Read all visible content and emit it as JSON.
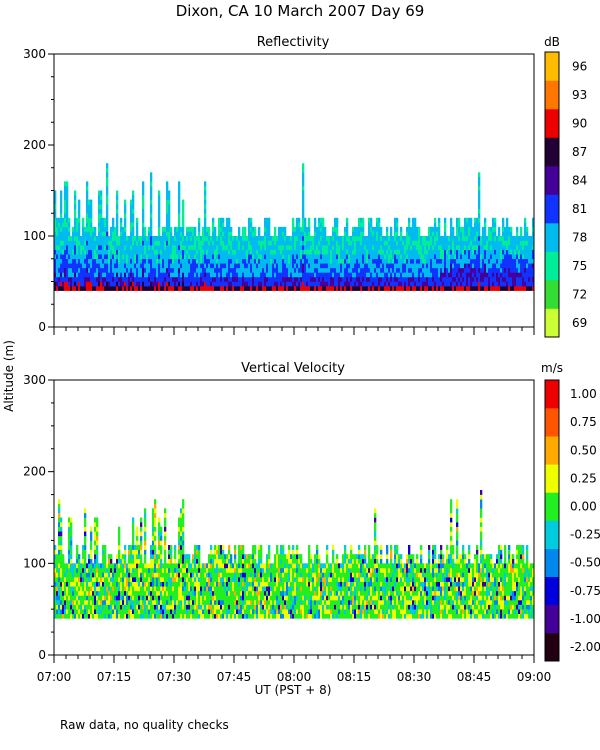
{
  "figure": {
    "title": "Dixon, CA 10 March 2007  Day  69",
    "ylabel": "Altitude (m)",
    "xlabel": "UT  (PST + 8)",
    "footnote": "Raw data, no quality checks"
  },
  "chart_data": [
    {
      "type": "heatmap",
      "title": "Reflectivity",
      "ylabel": "Altitude (m)",
      "ylim": [
        0,
        300
      ],
      "yticks": [
        0,
        100,
        200,
        300
      ],
      "xlim": [
        "07:00",
        "09:00"
      ],
      "xticks": [
        "07:00",
        "07:15",
        "07:30",
        "07:45",
        "08:00",
        "08:15",
        "08:30",
        "08:45",
        "09:00"
      ],
      "colorbar": {
        "unit": "dB",
        "levels": [
          69,
          72,
          75,
          78,
          81,
          84,
          87,
          90,
          93,
          96
        ],
        "colors": [
          "#ccff33",
          "#33dd33",
          "#00ee99",
          "#00bbee",
          "#1133ff",
          "#440099",
          "#220033",
          "#ee0000",
          "#ff7700",
          "#ffbb00"
        ]
      },
      "data_summary": {
        "bottom_altitude_m": 40,
        "typical_top_altitude_m": 120,
        "max_top_altitude_m": 180,
        "near_surface_band_dB": [
          81,
          90
        ],
        "upper_band_dB": [
          75,
          78
        ]
      }
    },
    {
      "type": "heatmap",
      "title": "Vertical Velocity",
      "ylabel": "Altitude (m)",
      "ylim": [
        0,
        300
      ],
      "yticks": [
        0,
        100,
        200,
        300
      ],
      "xlim": [
        "07:00",
        "09:00"
      ],
      "xticks": [
        "07:00",
        "07:15",
        "07:30",
        "07:45",
        "08:00",
        "08:15",
        "08:30",
        "08:45",
        "09:00"
      ],
      "xlabel": "UT  (PST + 8)",
      "colorbar": {
        "unit": "m/s",
        "levels": [
          "-2.00",
          "-1.00",
          "-0.75",
          "-0.50",
          "-0.25",
          "0.00",
          "0.25",
          "0.50",
          "0.75",
          "1.00"
        ],
        "colors": [
          "#220011",
          "#440099",
          "#0000dd",
          "#0088ee",
          "#00ccdd",
          "#22ee22",
          "#eeff00",
          "#ffaa00",
          "#ff5500",
          "#ee0000"
        ]
      },
      "data_summary": {
        "bottom_altitude_m": 40,
        "typical_top_altitude_m": 120,
        "max_top_altitude_m": 180,
        "dominant_velocity_m_s": [
          0.0,
          0.25
        ]
      }
    }
  ]
}
